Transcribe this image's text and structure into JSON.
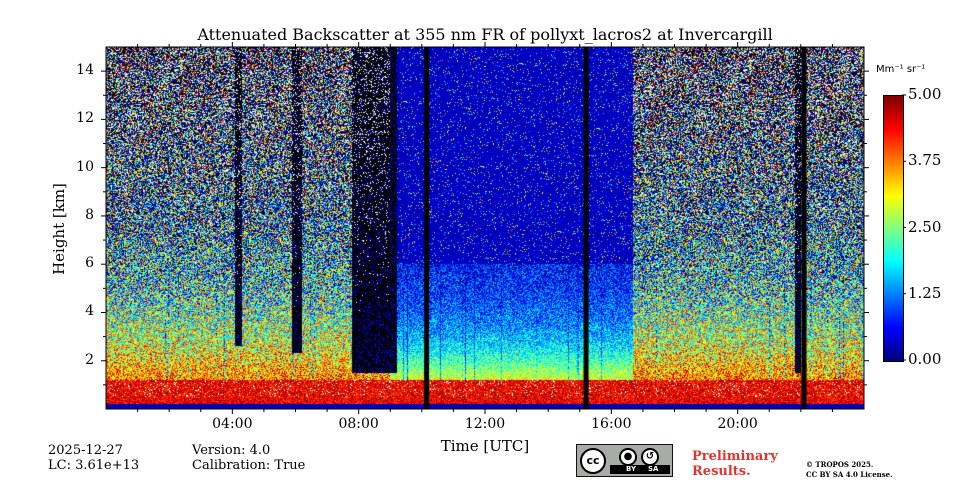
{
  "chart_data": {
    "type": "heatmap",
    "title": "Attenuated Backscatter at 355 nm FR of pollyxt_lacros2 at Invercargill",
    "xlabel": "Time [UTC]",
    "ylabel": "Height [km]",
    "x_range_hours": [
      0,
      24
    ],
    "y_range_km": [
      0,
      15
    ],
    "x_ticks": [
      {
        "hour": 4,
        "label": "04:00"
      },
      {
        "hour": 8,
        "label": "08:00"
      },
      {
        "hour": 12,
        "label": "12:00"
      },
      {
        "hour": 16,
        "label": "16:00"
      },
      {
        "hour": 20,
        "label": "20:00"
      }
    ],
    "y_ticks": [
      {
        "value": 2,
        "label": "2"
      },
      {
        "value": 4,
        "label": "4"
      },
      {
        "value": 6,
        "label": "6"
      },
      {
        "value": 8,
        "label": "8"
      },
      {
        "value": 10,
        "label": "10"
      },
      {
        "value": 12,
        "label": "12"
      },
      {
        "value": 14,
        "label": "14"
      }
    ],
    "colorbar": {
      "label": "Mm⁻¹ sr⁻¹",
      "range": [
        0.0,
        5.0
      ],
      "ticks": [
        {
          "value": 0.0,
          "label": "0.00"
        },
        {
          "value": 1.25,
          "label": "1.25"
        },
        {
          "value": 2.5,
          "label": "2.50"
        },
        {
          "value": 3.75,
          "label": "3.75"
        },
        {
          "value": 5.0,
          "label": "5.00"
        }
      ],
      "colormap": "jet"
    },
    "data_gaps_hours": [
      10.15,
      15.2,
      22.1
    ],
    "clean_period_hours": [
      9.0,
      16.7
    ],
    "cloud_events": [
      {
        "start_hour": 7.8,
        "end_hour": 9.2,
        "cloud_base_km": 1.5
      },
      {
        "start_hour": 5.9,
        "end_hour": 6.2,
        "cloud_base_km": 2.3
      },
      {
        "start_hour": 4.1,
        "end_hour": 4.3,
        "cloud_base_km": 2.6
      },
      {
        "start_hour": 21.8,
        "end_hour": 22.0,
        "cloud_base_km": 1.5
      }
    ],
    "boundary_layer_top_km": 1.2
  },
  "footer": {
    "date": "2025-12-27",
    "lidar_constant": "LC: 3.61e+13",
    "version": "Version: 4.0",
    "calibration": "Calibration: True",
    "preliminary_line1": "Preliminary",
    "preliminary_line2": "Results.",
    "copyright_line1": "© TROPOS 2025.",
    "copyright_line2": "CC BY SA 4.0 License."
  },
  "license_badge": {
    "cc": "cc",
    "by": "BY",
    "sa": "SA"
  }
}
